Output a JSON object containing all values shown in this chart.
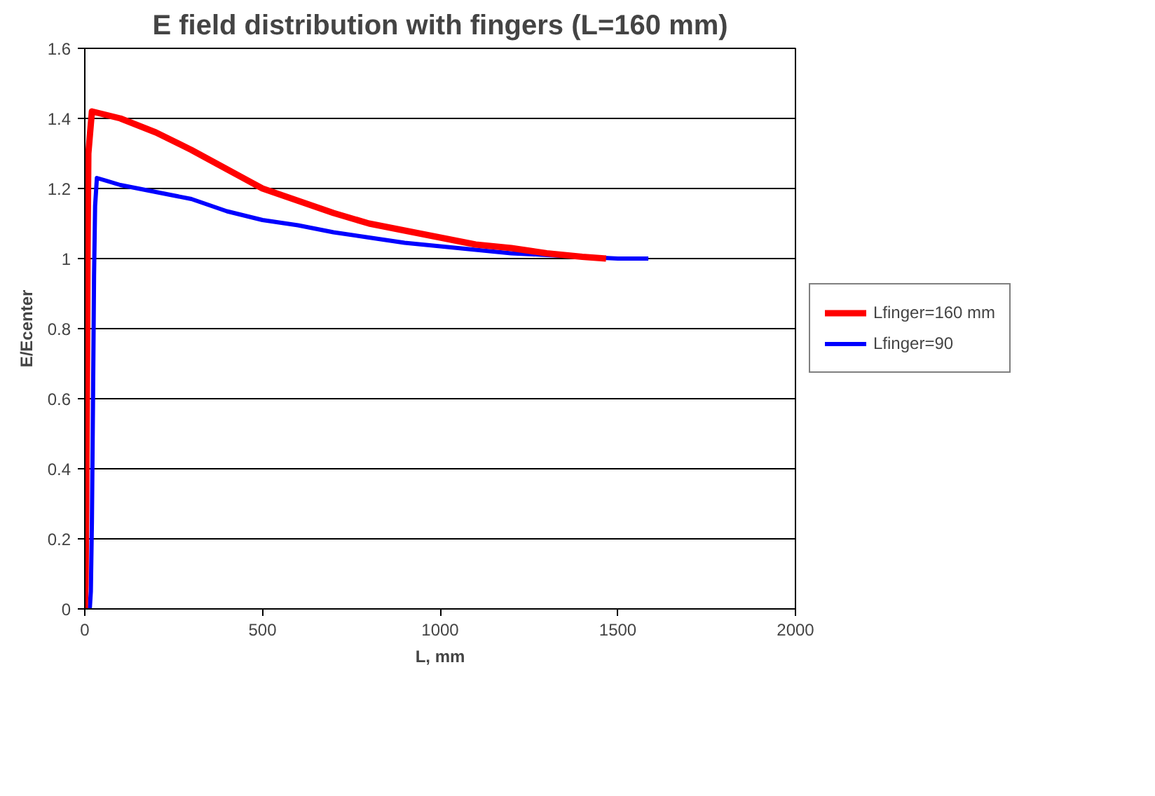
{
  "chart_data": {
    "type": "line",
    "title": "E field distribution with fingers (L=160 mm)",
    "xlabel": "L, mm",
    "ylabel": "E/Ecenter",
    "xlim": [
      0,
      2000
    ],
    "xticks": [
      0,
      500,
      1000,
      1500,
      2000
    ],
    "ylim": [
      0,
      1.6
    ],
    "yticks": [
      0,
      {
        "value": 0.2,
        "label": "0.2"
      },
      {
        "value": 0.4,
        "label": "0.4"
      },
      {
        "value": 0.6,
        "label": "0.6"
      },
      {
        "value": 0.8,
        "label": "0.8"
      },
      1,
      {
        "value": 1.2,
        "label": "1.2"
      },
      {
        "value": 1.4,
        "label": "1.4"
      },
      {
        "value": 1.6,
        "label": "1.6"
      }
    ],
    "grid": "y",
    "legend": "right",
    "line_style": "solid",
    "marker": "none",
    "series": [
      {
        "name": "Lfinger=160 mm",
        "color": "#ff0000",
        "x": [
          0,
          2,
          4,
          6,
          8,
          10,
          20,
          100,
          200,
          300,
          400,
          500,
          600,
          700,
          800,
          900,
          1000,
          1100,
          1200,
          1300,
          1400,
          1467
        ],
        "values": [
          0,
          0.07,
          0.3,
          0.65,
          1.05,
          1.3,
          1.42,
          1.4,
          1.36,
          1.31,
          1.255,
          1.2,
          1.165,
          1.13,
          1.1,
          1.08,
          1.06,
          1.04,
          1.03,
          1.015,
          1.005,
          1.0
        ]
      },
      {
        "name": "Lfinger=90",
        "color": "#0000ff",
        "x": [
          14,
          17,
          20,
          23,
          26,
          29,
          34,
          100,
          200,
          300,
          400,
          500,
          600,
          700,
          800,
          900,
          1000,
          1100,
          1200,
          1300,
          1400,
          1500,
          1586
        ],
        "values": [
          0,
          0.05,
          0.25,
          0.58,
          0.95,
          1.15,
          1.23,
          1.21,
          1.19,
          1.17,
          1.135,
          1.11,
          1.095,
          1.075,
          1.06,
          1.045,
          1.035,
          1.025,
          1.015,
          1.01,
          1.005,
          1.0,
          1.0
        ]
      }
    ]
  }
}
